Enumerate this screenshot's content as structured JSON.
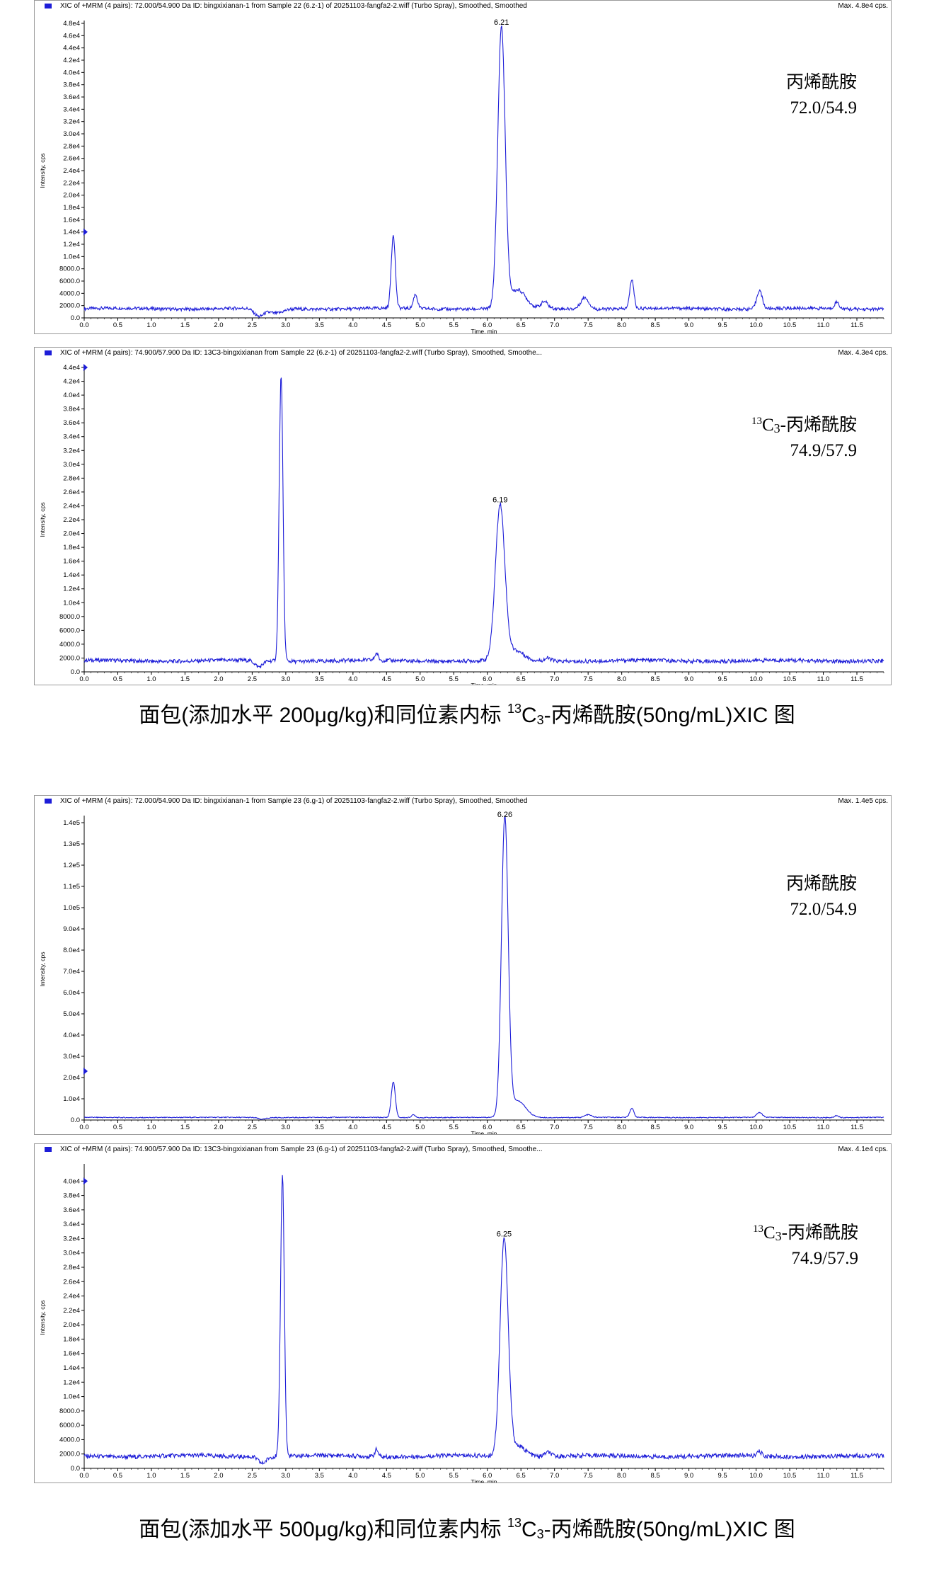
{
  "caption_top": {
    "a": "面包(添加水平 200μg/kg)和同位素内标 ",
    "sup": "13",
    "b": "C",
    "sub": "3",
    "c": "-丙烯酰胺(50ng/mL)XIC 图"
  },
  "caption_bottom": {
    "a": "面包(添加水平 500μg/kg)和同位素内标 ",
    "sup": "13",
    "b": "C",
    "sub": "3",
    "c": "-丙烯酰胺(50ng/mL)XIC 图"
  },
  "colors": {
    "trace": "#1d1dd8",
    "axis": "#000000",
    "frame": "#9a9a9a"
  },
  "chart_data": [
    {
      "type": "line",
      "header": "XIC of +MRM (4 pairs): 72.000/54.900 Da ID: bingxixianan-1 from Sample 22 (6.z-1) of 20251103-fangfa2-2.wiff (Turbo Spray), Smoothed, Smoothed",
      "max_label": "Max. 4.8e4 cps.",
      "xlabel": "Time, min",
      "ylabel": "Intensity, cps",
      "xlim": [
        0,
        11.9
      ],
      "ylim": [
        0,
        48000
      ],
      "xticks": [
        "0.0",
        "0.5",
        "1.0",
        "1.5",
        "2.0",
        "2.5",
        "3.0",
        "3.5",
        "4.0",
        "4.5",
        "5.0",
        "5.5",
        "6.0",
        "6.5",
        "7.0",
        "7.5",
        "8.0",
        "8.5",
        "9.0",
        "9.5",
        "10.0",
        "10.5",
        "11.0",
        "11.5"
      ],
      "yticks": [
        "0.0",
        "2000.0",
        "4000.0",
        "6000.0",
        "8000.0",
        "1.0e4",
        "1.2e4",
        "1.4e4",
        "1.6e4",
        "1.8e4",
        "2.0e4",
        "2.2e4",
        "2.4e4",
        "2.6e4",
        "2.8e4",
        "3.0e4",
        "3.2e4",
        "3.4e4",
        "3.6e4",
        "3.8e4",
        "4.0e4",
        "4.2e4",
        "4.4e4",
        "4.6e4",
        "4.8e4"
      ],
      "ytick_step": 2000,
      "baseline": 1500,
      "dips": [
        {
          "x": 2.6,
          "depth": 1300,
          "w": 0.1
        },
        {
          "x": 2.85,
          "depth": 800,
          "w": 0.15
        }
      ],
      "peaks": [
        {
          "x": 4.6,
          "y": 13500,
          "w": 0.03
        },
        {
          "x": 4.93,
          "y": 3800,
          "w": 0.03
        },
        {
          "x": 6.21,
          "y": 47200,
          "w": 0.055
        },
        {
          "x": 6.45,
          "y": 4500,
          "w": 0.12
        },
        {
          "x": 6.85,
          "y": 2600,
          "w": 0.05
        },
        {
          "x": 7.45,
          "y": 3400,
          "w": 0.06
        },
        {
          "x": 8.15,
          "y": 6300,
          "w": 0.03
        },
        {
          "x": 10.05,
          "y": 4500,
          "w": 0.04
        },
        {
          "x": 11.2,
          "y": 2600,
          "w": 0.035
        }
      ],
      "peak_label": {
        "text": "6.21",
        "x": 6.21,
        "y": 47200
      },
      "annotation": {
        "pre": "",
        "sup": "",
        "l1": "丙烯酰胺",
        "l2": "72.0/54.9"
      }
    },
    {
      "type": "line",
      "header": "XIC of +MRM (4 pairs): 74.900/57.900 Da ID: 13C3-bingxixianan from Sample 22 (6.z-1) of 20251103-fangfa2-2.wiff (Turbo Spray), Smoothed, Smoothe...",
      "max_label": "Max. 4.3e4 cps.",
      "xlabel": "Time, min",
      "ylabel": "Intensity, cps",
      "xlim": [
        0,
        11.9
      ],
      "ylim": [
        0,
        44000
      ],
      "xticks": [
        "0.0",
        "0.5",
        "1.0",
        "1.5",
        "2.0",
        "2.5",
        "3.0",
        "3.5",
        "4.0",
        "4.5",
        "5.0",
        "5.5",
        "6.0",
        "6.5",
        "7.0",
        "7.5",
        "8.0",
        "8.5",
        "9.0",
        "9.5",
        "10.0",
        "10.5",
        "11.0",
        "11.5"
      ],
      "yticks": [
        "0.0",
        "2000.0",
        "4000.0",
        "6000.0",
        "8000.0",
        "1.0e4",
        "1.2e4",
        "1.4e4",
        "1.6e4",
        "1.8e4",
        "2.0e4",
        "2.2e4",
        "2.4e4",
        "2.6e4",
        "2.8e4",
        "3.0e4",
        "3.2e4",
        "3.4e4",
        "3.6e4",
        "3.8e4",
        "4.0e4",
        "4.2e4",
        "4.4e4"
      ],
      "ytick_step": 2000,
      "baseline": 1600,
      "dips": [
        {
          "x": 2.6,
          "depth": 900,
          "w": 0.08
        }
      ],
      "peaks": [
        {
          "x": 2.93,
          "y": 43000,
          "w": 0.028
        },
        {
          "x": 4.35,
          "y": 2600,
          "w": 0.025
        },
        {
          "x": 6.19,
          "y": 24000,
          "w": 0.07
        },
        {
          "x": 6.42,
          "y": 3000,
          "w": 0.12
        },
        {
          "x": 6.9,
          "y": 2000,
          "w": 0.05
        }
      ],
      "peak_label": {
        "text": "6.19",
        "x": 6.19,
        "y": 24000
      },
      "annotation": {
        "pre": "",
        "sup": "13",
        "l1": "C",
        "sub": "3",
        "l1b": "-丙烯酰胺",
        "l2": "74.9/57.9"
      }
    },
    {
      "type": "line",
      "header": "XIC of +MRM (4 pairs): 72.000/54.900 Da ID: bingxixianan-1 from Sample 23 (6.g-1) of 20251103-fangfa2-2.wiff (Turbo Spray), Smoothed, Smoothed",
      "max_label": "Max. 1.4e5 cps.",
      "xlabel": "Time, min",
      "ylabel": "Intensity, cps",
      "xlim": [
        0,
        11.9
      ],
      "ylim": [
        0,
        142000
      ],
      "xticks": [
        "0.0",
        "0.5",
        "1.0",
        "1.5",
        "2.0",
        "2.5",
        "3.0",
        "3.5",
        "4.0",
        "4.5",
        "5.0",
        "5.5",
        "6.0",
        "6.5",
        "7.0",
        "7.5",
        "8.0",
        "8.5",
        "9.0",
        "9.5",
        "10.0",
        "10.5",
        "11.0",
        "11.5"
      ],
      "yticks": [
        "0.0",
        "1.0e4",
        "2.0e4",
        "3.0e4",
        "4.0e4",
        "5.0e4",
        "6.0e4",
        "7.0e4",
        "8.0e4",
        "9.0e4",
        "1.0e5",
        "1.1e5",
        "1.2e5",
        "1.3e5",
        "1.4e5"
      ],
      "ytick_step": 10000,
      "baseline": 1200,
      "dips": [
        {
          "x": 2.65,
          "depth": 800,
          "w": 0.08
        }
      ],
      "peaks": [
        {
          "x": 4.6,
          "y": 18000,
          "w": 0.03
        },
        {
          "x": 4.9,
          "y": 2500,
          "w": 0.03
        },
        {
          "x": 6.26,
          "y": 141000,
          "w": 0.05
        },
        {
          "x": 6.45,
          "y": 9000,
          "w": 0.12
        },
        {
          "x": 7.5,
          "y": 2500,
          "w": 0.05
        },
        {
          "x": 8.15,
          "y": 5500,
          "w": 0.03
        },
        {
          "x": 10.05,
          "y": 3500,
          "w": 0.04
        },
        {
          "x": 11.2,
          "y": 2200,
          "w": 0.03
        }
      ],
      "peak_label": {
        "text": "6.26",
        "x": 6.26,
        "y": 141000
      },
      "annotation": {
        "pre": "",
        "sup": "",
        "l1": "丙烯酰胺",
        "l2": "72.0/54.9"
      }
    },
    {
      "type": "line",
      "header": "XIC of +MRM (4 pairs): 74.900/57.900 Da ID: 13C3-bingxixianan from Sample 23 (6.g-1) of 20251103-fangfa2-2.wiff (Turbo Spray), Smoothed, Smoothe...",
      "max_label": "Max. 4.1e4 cps.",
      "xlabel": "Time, min",
      "ylabel": "Intensity, cps",
      "xlim": [
        0,
        11.9
      ],
      "ylim": [
        0,
        42000
      ],
      "xticks": [
        "0.0",
        "0.5",
        "1.0",
        "1.5",
        "2.0",
        "2.5",
        "3.0",
        "3.5",
        "4.0",
        "4.5",
        "5.0",
        "5.5",
        "6.0",
        "6.5",
        "7.0",
        "7.5",
        "8.0",
        "8.5",
        "9.0",
        "9.5",
        "10.0",
        "10.5",
        "11.0",
        "11.5"
      ],
      "yticks": [
        "0.0",
        "2000.0",
        "4000.0",
        "6000.0",
        "8000.0",
        "1.0e4",
        "1.2e4",
        "1.4e4",
        "1.6e4",
        "1.8e4",
        "2.0e4",
        "2.2e4",
        "2.4e4",
        "2.6e4",
        "2.8e4",
        "3.0e4",
        "3.2e4",
        "3.4e4",
        "3.6e4",
        "3.8e4",
        "4.0e4"
      ],
      "ytick_step": 2000,
      "baseline": 1700,
      "dips": [
        {
          "x": 2.65,
          "depth": 900,
          "w": 0.08
        }
      ],
      "peaks": [
        {
          "x": 2.95,
          "y": 41000,
          "w": 0.028
        },
        {
          "x": 4.35,
          "y": 2700,
          "w": 0.025
        },
        {
          "x": 6.25,
          "y": 31800,
          "w": 0.06
        },
        {
          "x": 6.45,
          "y": 3200,
          "w": 0.12
        },
        {
          "x": 6.9,
          "y": 2300,
          "w": 0.05
        },
        {
          "x": 10.05,
          "y": 2300,
          "w": 0.03
        }
      ],
      "peak_label": {
        "text": "6.25",
        "x": 6.25,
        "y": 31800
      },
      "annotation": {
        "pre": "",
        "sup": "13",
        "l1": "C",
        "sub": "3",
        "l1b": "-丙烯酰胺",
        "l2": "74.9/57.9"
      }
    }
  ]
}
